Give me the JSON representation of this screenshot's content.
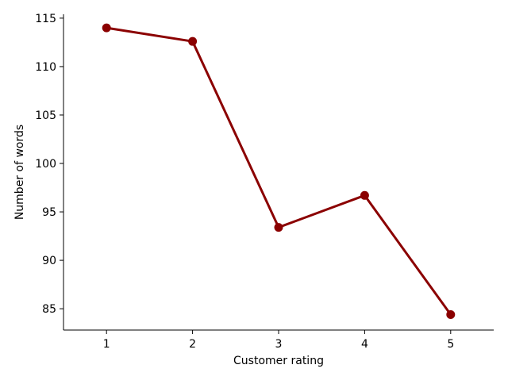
{
  "chart_data": {
    "type": "line",
    "title": "",
    "xlabel": "Customer rating",
    "ylabel": "Number of words",
    "categories": [
      "1",
      "2",
      "3",
      "4",
      "5"
    ],
    "series": [
      {
        "values": [
          114.0,
          112.6,
          93.4,
          96.7,
          84.4
        ],
        "color": "#8b0000"
      }
    ],
    "y_ticks": [
      85,
      90,
      95,
      100,
      105,
      110,
      115
    ],
    "xlim": [
      0.5,
      5.5
    ],
    "ylim": [
      82.8,
      115.4
    ],
    "grid": false,
    "legend": "none",
    "spines": "left-bottom"
  }
}
